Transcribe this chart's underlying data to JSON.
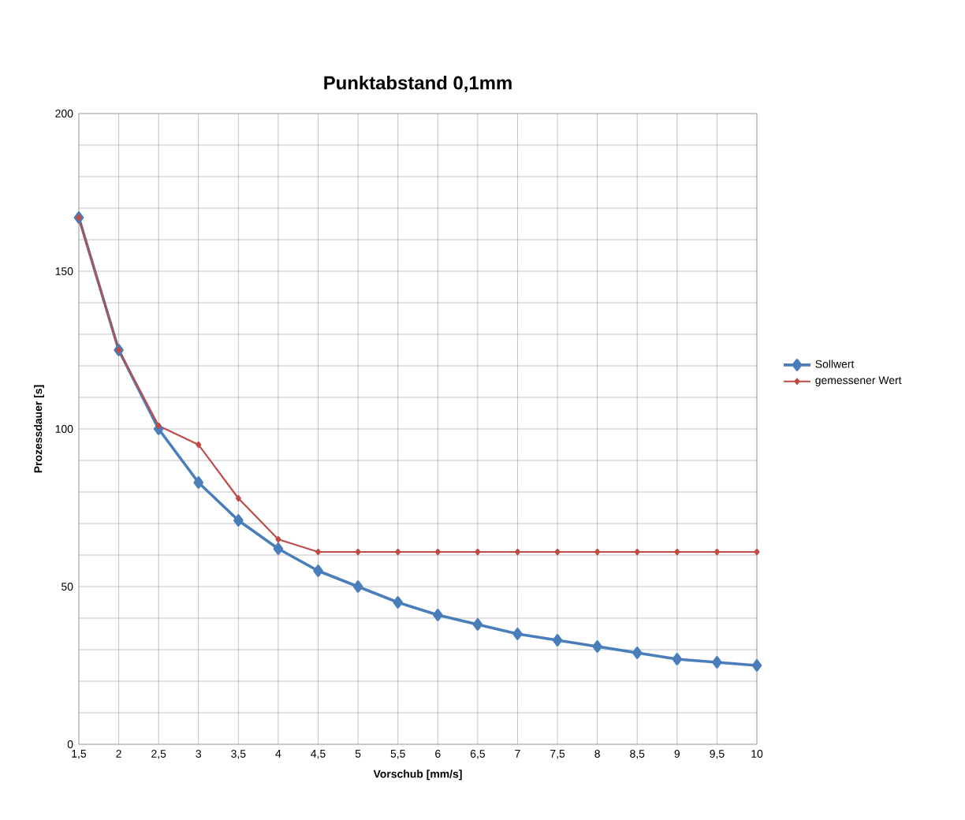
{
  "chart_data": {
    "type": "line",
    "title": "Punktabstand 0,1mm",
    "xlabel": "Vorschub [mm/s]",
    "ylabel": "Prozessdauer [s]",
    "categories": [
      "1,5",
      "2",
      "2,5",
      "3",
      "3,5",
      "4",
      "4,5",
      "5",
      "5,5",
      "6",
      "6,5",
      "7",
      "7,5",
      "8",
      "8,5",
      "9",
      "9,5",
      "10"
    ],
    "series": [
      {
        "name": "Sollwert",
        "color": "#4a7ebb",
        "values": [
          167,
          125,
          100,
          83,
          71,
          62,
          55,
          50,
          45,
          41,
          38,
          35,
          33,
          31,
          29,
          27,
          26,
          25
        ]
      },
      {
        "name": "gemessener Wert",
        "color": "#be4b48",
        "values": [
          167,
          125,
          101,
          95,
          78,
          65,
          61,
          61,
          61,
          61,
          61,
          61,
          61,
          61,
          61,
          61,
          61,
          61
        ]
      }
    ],
    "ylim": [
      0,
      200
    ],
    "yticks": [
      0,
      {
        "value": 10,
        "label": null
      },
      {
        "value": 20,
        "label": null
      },
      {
        "value": 30,
        "label": null
      },
      {
        "value": 40,
        "label": null
      },
      50,
      {
        "value": 60,
        "label": null
      },
      {
        "value": 70,
        "label": null
      },
      {
        "value": 80,
        "label": null
      },
      {
        "value": 90,
        "label": null
      },
      100,
      {
        "value": 110,
        "label": null
      },
      {
        "value": 120,
        "label": null
      },
      {
        "value": 130,
        "label": null
      },
      {
        "value": 140,
        "label": null
      },
      150,
      {
        "value": 160,
        "label": null
      },
      {
        "value": 170,
        "label": null
      },
      {
        "value": 180,
        "label": null
      },
      {
        "value": 190,
        "label": null
      },
      200
    ],
    "grid": true,
    "legend": "right",
    "marker": "diamond",
    "line_style": "solid"
  }
}
